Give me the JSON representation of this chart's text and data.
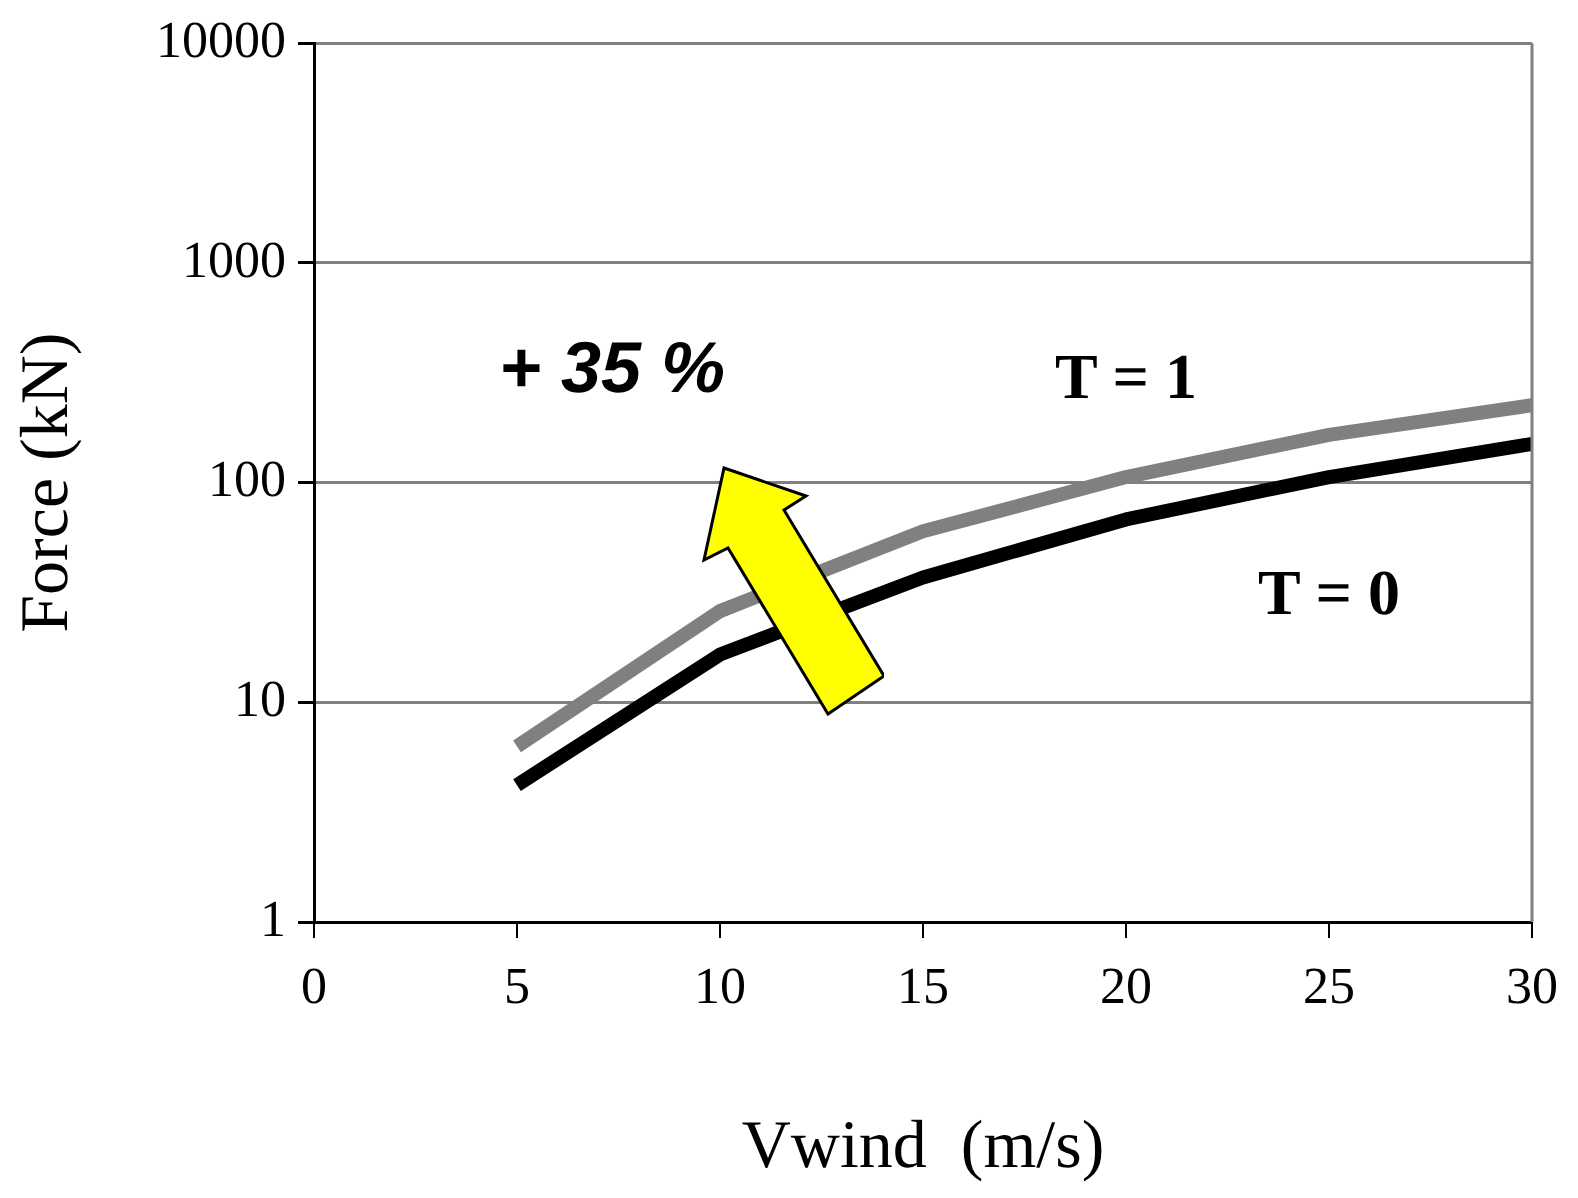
{
  "chart_data": {
    "type": "line",
    "xlabel": "Vwind  (m/s)",
    "ylabel": "Force (kN)",
    "x": [
      5,
      10,
      15,
      20,
      25,
      30
    ],
    "series": [
      {
        "name": "T = 1",
        "color": "#808080",
        "values": [
          6.3,
          26,
          60,
          106,
          165,
          225
        ]
      },
      {
        "name": "T = 0",
        "color": "#000000",
        "values": [
          4.2,
          16.5,
          37,
          68,
          106,
          150
        ]
      }
    ],
    "xlim": [
      0,
      30
    ],
    "xticks": [
      0,
      5,
      10,
      15,
      20,
      25,
      30
    ],
    "ylim": [
      1,
      10000
    ],
    "yticks": [
      1,
      10,
      100,
      1000,
      10000
    ],
    "log": "y",
    "grid": "y",
    "legend": false,
    "marker": "none",
    "line_style": "solid",
    "annotations": [
      "+ 35 %"
    ]
  }
}
